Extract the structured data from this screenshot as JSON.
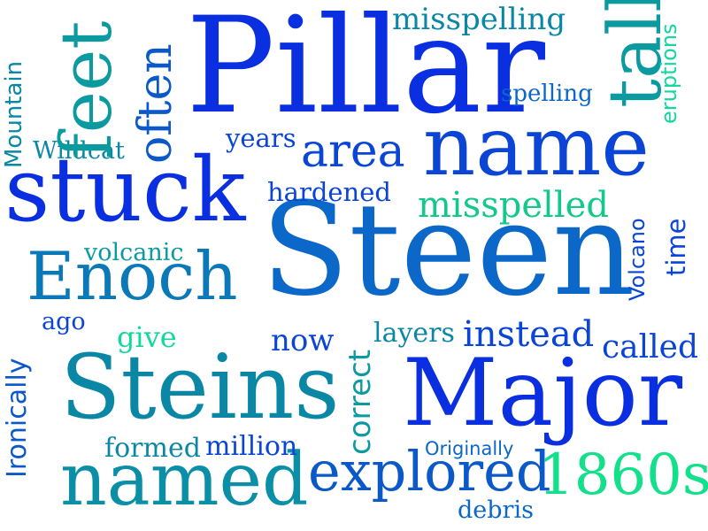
{
  "words": {
    "pillar": {
      "text": "Pillar",
      "color": "#0a2fe0"
    },
    "steen": {
      "text": "Steen",
      "color": "#0b67c8"
    },
    "name": {
      "text": "name",
      "color": "#0a45d6"
    },
    "stuck": {
      "text": "stuck",
      "color": "#0a2fe0"
    },
    "steins": {
      "text": "Steins",
      "color": "#0b87a6"
    },
    "major": {
      "text": "Major",
      "color": "#0a2fe0"
    },
    "enoch": {
      "text": "Enoch",
      "color": "#0b78b8"
    },
    "named": {
      "text": "named",
      "color": "#0b8fa6"
    },
    "explored": {
      "text": "explored",
      "color": "#0b58c8"
    },
    "feet": {
      "text": "feet",
      "color": "#0b9aa0"
    },
    "often": {
      "text": "often",
      "color": "#0b58c8"
    },
    "tall": {
      "text": "tall",
      "color": "#0b9aa0"
    },
    "area": {
      "text": "area",
      "color": "#0a45d6"
    },
    "misspelling": {
      "text": "misspelling",
      "color": "#0b87a6"
    },
    "misspelled": {
      "text": "misspelled",
      "color": "#12c98a"
    },
    "1860s": {
      "text": "1860s",
      "color": "#12e08a"
    },
    "spelling": {
      "text": "spelling",
      "color": "#0b67c8"
    },
    "eruptions": {
      "text": "eruptions",
      "color": "#12d8a0"
    },
    "mountain": {
      "text": "Mountain",
      "color": "#0b87a6"
    },
    "wildcat": {
      "text": "Wildcat",
      "color": "#0b87a6"
    },
    "years": {
      "text": "years",
      "color": "#0a45d6"
    },
    "hardened": {
      "text": "hardened",
      "color": "#0a45d6"
    },
    "volcano": {
      "text": "Volcano",
      "color": "#0a45d6"
    },
    "time": {
      "text": "time",
      "color": "#0a45d6"
    },
    "volcanic": {
      "text": "volcanic",
      "color": "#0b9aa0"
    },
    "ironically": {
      "text": "Ironically",
      "color": "#0b58c8"
    },
    "ago": {
      "text": "ago",
      "color": "#0a45d6"
    },
    "give": {
      "text": "give",
      "color": "#12d8a0"
    },
    "now": {
      "text": "now",
      "color": "#0a45d6"
    },
    "layers": {
      "text": "layers",
      "color": "#0b87a6"
    },
    "instead": {
      "text": "instead",
      "color": "#0a45d6"
    },
    "called": {
      "text": "called",
      "color": "#0a45d6"
    },
    "correct": {
      "text": "correct",
      "color": "#0b9aa0"
    },
    "formed": {
      "text": "formed",
      "color": "#0b87a6"
    },
    "million": {
      "text": "million",
      "color": "#0a45d6"
    },
    "originally": {
      "text": "Originally",
      "color": "#0b67c8"
    },
    "debris": {
      "text": "debris",
      "color": "#0b67c8"
    }
  }
}
